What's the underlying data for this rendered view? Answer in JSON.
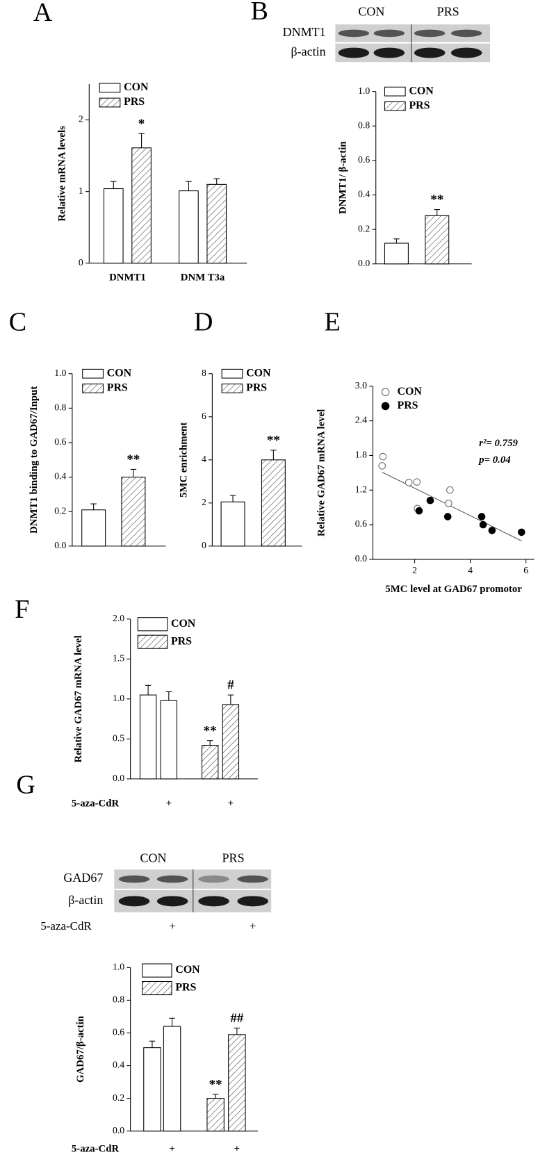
{
  "chart_data": [
    {
      "panel": "A",
      "type": "bar",
      "ylabel": "Relative  mRNA levels",
      "categories": [
        "DNMT1",
        "DNM T3a"
      ],
      "ylim": [
        0,
        2.5
      ],
      "yticks": [
        0,
        1,
        2
      ],
      "series": [
        {
          "name": "CON",
          "color": "#000000",
          "hatch": false,
          "values": [
            1.04,
            1.01
          ],
          "errors": [
            0.1,
            0.13
          ],
          "labels": [
            null,
            null
          ]
        },
        {
          "name": "PRS",
          "color": "#000000",
          "hatch": true,
          "values": [
            1.61,
            1.1
          ],
          "errors": [
            0.2,
            0.08
          ],
          "labels": [
            "*",
            null
          ]
        }
      ]
    },
    {
      "panel": "B",
      "type": "bar",
      "blot": {
        "groups": [
          "CON",
          "PRS"
        ],
        "rows": [
          "DNMT1",
          "β-actin"
        ]
      },
      "ylabel": "DNMT1/ β-actin",
      "categories": [
        null
      ],
      "ylim": [
        0,
        1
      ],
      "yticks": [
        {
          "value": 0,
          "label": "0.0"
        },
        0.2,
        0.4,
        0.6,
        0.8,
        {
          "value": 1,
          "label": "1.0"
        }
      ],
      "series": [
        {
          "name": "CON",
          "color": "#000000",
          "hatch": false,
          "values": [
            0.12
          ],
          "errors": [
            0.025
          ],
          "labels": [
            null
          ]
        },
        {
          "name": "PRS",
          "color": "#000000",
          "hatch": true,
          "values": [
            0.28
          ],
          "errors": [
            0.035
          ],
          "labels": [
            "**"
          ]
        }
      ]
    },
    {
      "panel": "C",
      "type": "bar",
      "ylabel": "DNMT1 binding to GAD67/Input",
      "categories": [
        null
      ],
      "ylim": [
        0,
        1
      ],
      "yticks": [
        {
          "value": 0,
          "label": "0.0"
        },
        0.2,
        0.4,
        0.6,
        0.8,
        {
          "value": 1,
          "label": "1.0"
        }
      ],
      "series": [
        {
          "name": "CON",
          "color": "#000000",
          "hatch": false,
          "values": [
            0.21
          ],
          "errors": [
            0.035
          ],
          "labels": [
            null
          ]
        },
        {
          "name": "PRS",
          "color": "#000000",
          "hatch": true,
          "values": [
            0.4
          ],
          "errors": [
            0.045
          ],
          "labels": [
            "**"
          ]
        }
      ]
    },
    {
      "panel": "D",
      "type": "bar",
      "ylabel": "5MC enrichment",
      "categories": [
        null
      ],
      "ylim": [
        0,
        8
      ],
      "yticks": [
        0,
        2,
        4,
        6,
        8
      ],
      "series": [
        {
          "name": "CON",
          "color": "#000000",
          "hatch": false,
          "values": [
            2.05
          ],
          "errors": [
            0.3
          ],
          "labels": [
            null
          ]
        },
        {
          "name": "PRS",
          "color": "#000000",
          "hatch": true,
          "values": [
            4.0
          ],
          "errors": [
            0.45
          ],
          "labels": [
            "**"
          ]
        }
      ]
    },
    {
      "panel": "E",
      "type": "scatter",
      "xlabel": "5MC level at GAD67 promotor",
      "ylabel": "Relative GAD67 mRNA level",
      "xlim": [
        0.5,
        6.3
      ],
      "xticks": [
        2,
        4,
        6
      ],
      "ylim": [
        0,
        3
      ],
      "yticks": [
        {
          "value": 0,
          "label": "0.0"
        },
        0.6,
        1.2,
        1.8,
        2.4,
        {
          "value": 3,
          "label": "3.0"
        }
      ],
      "stats": [
        "r²= 0.759",
        "p= 0.04"
      ],
      "series": [
        {
          "name": "CON",
          "color": "#000000",
          "marker": "open",
          "x": [
            0.86,
            0.83,
            1.79,
            2.08,
            2.1,
            3.27,
            3.22
          ],
          "values": [
            1.78,
            1.62,
            1.33,
            1.34,
            0.88,
            1.2,
            0.97
          ]
        },
        {
          "name": "PRS",
          "color": "#000000",
          "marker": "filled",
          "x": [
            2.16,
            2.56,
            3.19,
            4.41,
            4.46,
            4.78,
            5.84
          ],
          "values": [
            0.84,
            1.02,
            0.74,
            0.74,
            0.6,
            0.5,
            0.47
          ]
        }
      ]
    },
    {
      "panel": "F",
      "type": "bar",
      "ylabel": "Relative GAD67 mRNA level",
      "xlabel": "5-aza-CdR",
      "categories": [
        null,
        "+"
      ],
      "ylim": [
        0,
        2
      ],
      "yticks": [
        {
          "value": 0,
          "label": "0.0"
        },
        0.5,
        {
          "value": 1,
          "label": "1.0"
        },
        1.5,
        {
          "value": 2,
          "label": "2.0"
        }
      ],
      "series": [
        {
          "name": "CON",
          "color": "#000000",
          "hatch": false,
          "values": [
            1.05,
            0.98
          ],
          "errors": [
            0.12,
            0.11
          ],
          "labels": [
            null,
            null
          ]
        },
        {
          "name": "PRS",
          "color": "#000000",
          "hatch": true,
          "values": [
            0.42,
            0.93
          ],
          "errors": [
            0.06,
            0.12
          ],
          "labels": [
            "**",
            "#"
          ]
        }
      ]
    },
    {
      "panel": "G",
      "type": "bar",
      "blot": {
        "groups": [
          "CON",
          "PRS"
        ],
        "rows": [
          "GAD67",
          "β-actin"
        ]
      },
      "ylabel": "GAD67/β-actin",
      "xlabel": "5-aza-CdR",
      "categories": [
        null,
        "+"
      ],
      "ylim": [
        0,
        1
      ],
      "yticks": [
        {
          "value": 0,
          "label": "0.0"
        },
        0.2,
        0.4,
        0.6,
        0.8,
        {
          "value": 1,
          "label": "1.0"
        }
      ],
      "series": [
        {
          "name": "CON",
          "color": "#000000",
          "hatch": false,
          "values": [
            0.51,
            0.64
          ],
          "errors": [
            0.04,
            0.05
          ],
          "labels": [
            null,
            null
          ]
        },
        {
          "name": "PRS",
          "color": "#000000",
          "hatch": true,
          "values": [
            0.2,
            0.59
          ],
          "errors": [
            0.025,
            0.04
          ],
          "labels": [
            "**",
            "##"
          ]
        }
      ]
    }
  ]
}
